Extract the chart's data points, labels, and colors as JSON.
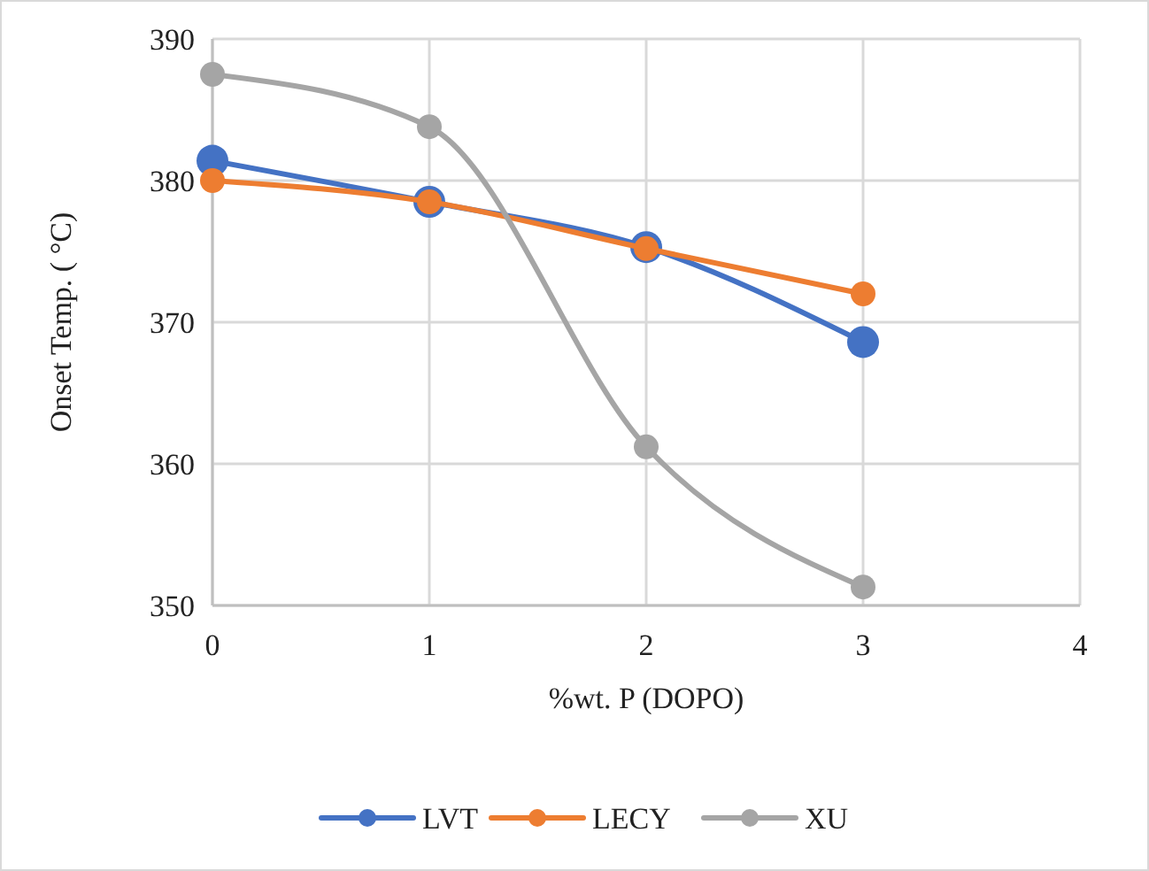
{
  "chart_data": {
    "type": "line",
    "xlabel": "%wt. P (DOPO)",
    "ylabel": "Onset Temp. ( °C)",
    "x": [
      0,
      1,
      2,
      3
    ],
    "series": [
      {
        "name": "LVT",
        "color": "#4472c4",
        "values": [
          381.4,
          378.5,
          375.3,
          368.6
        ]
      },
      {
        "name": "LECY",
        "color": "#ed7d31",
        "values": [
          380.0,
          378.5,
          375.2,
          372.0
        ]
      },
      {
        "name": "XU",
        "color": "#a5a5a5",
        "values": [
          387.5,
          383.8,
          361.2,
          351.3
        ]
      }
    ],
    "xlim": [
      0,
      4
    ],
    "xticks": [
      0,
      1,
      2,
      3,
      4
    ],
    "ylim": [
      350,
      390
    ],
    "yticks": [
      350,
      360,
      370,
      380,
      390
    ],
    "grid": true,
    "legend": "bottom",
    "marker": "circle",
    "line_style": "solid"
  }
}
